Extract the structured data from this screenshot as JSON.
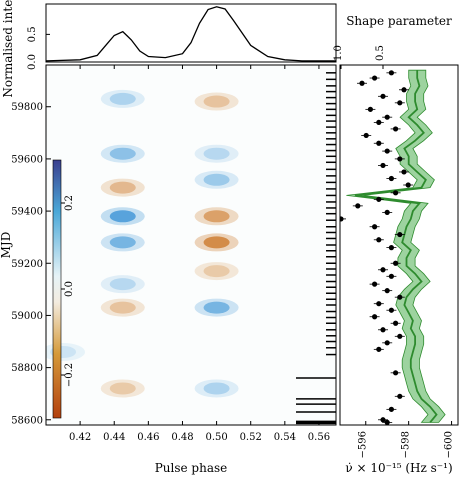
{
  "chart_data": [
    {
      "type": "line",
      "panel": "top profile",
      "ylabel": "Normalised intensity",
      "yticks": [
        "0.0",
        "0.5"
      ],
      "ylim": [
        0,
        1.05
      ],
      "xlim": [
        0.4,
        0.57
      ],
      "x": [
        0.4,
        0.42,
        0.43,
        0.435,
        0.44,
        0.445,
        0.45,
        0.455,
        0.46,
        0.47,
        0.48,
        0.485,
        0.49,
        0.495,
        0.5,
        0.505,
        0.51,
        0.52,
        0.53,
        0.54,
        0.55,
        0.56,
        0.57
      ],
      "y": [
        0.02,
        0.04,
        0.12,
        0.3,
        0.48,
        0.55,
        0.4,
        0.2,
        0.1,
        0.08,
        0.15,
        0.35,
        0.7,
        0.95,
        1.0,
        0.96,
        0.75,
        0.3,
        0.1,
        0.04,
        0.02,
        0.02,
        0.02
      ]
    },
    {
      "type": "heatmap",
      "panel": "main residual map",
      "xlabel": "Pulse phase",
      "ylabel": "MJD",
      "xlim": [
        0.4,
        0.57
      ],
      "ylim": [
        58580,
        59960
      ],
      "xticks": [
        "0.42",
        "0.44",
        "0.46",
        "0.48",
        "0.50",
        "0.52",
        "0.54",
        "0.56"
      ],
      "yticks": [
        "58600",
        "58800",
        "59000",
        "59200",
        "59400",
        "59600",
        "59800"
      ],
      "colorbar": {
        "ticks": [
          "0.2",
          "0.0",
          "−0.2"
        ],
        "vmin": -0.3,
        "vmax": 0.3
      },
      "features": [
        {
          "phase": 0.445,
          "mjd": 59830,
          "value": 0.12
        },
        {
          "phase": 0.445,
          "mjd": 59620,
          "value": 0.18
        },
        {
          "phase": 0.445,
          "mjd": 59490,
          "value": -0.15
        },
        {
          "phase": 0.445,
          "mjd": 59380,
          "value": 0.28
        },
        {
          "phase": 0.445,
          "mjd": 59280,
          "value": 0.22
        },
        {
          "phase": 0.445,
          "mjd": 59120,
          "value": 0.1
        },
        {
          "phase": 0.445,
          "mjd": 59030,
          "value": -0.12
        },
        {
          "phase": 0.445,
          "mjd": 58720,
          "value": -0.1
        },
        {
          "phase": 0.5,
          "mjd": 59820,
          "value": -0.12
        },
        {
          "phase": 0.5,
          "mjd": 59620,
          "value": 0.1
        },
        {
          "phase": 0.5,
          "mjd": 59520,
          "value": 0.15
        },
        {
          "phase": 0.5,
          "mjd": 59380,
          "value": -0.22
        },
        {
          "phase": 0.5,
          "mjd": 59280,
          "value": -0.28
        },
        {
          "phase": 0.5,
          "mjd": 59170,
          "value": -0.1
        },
        {
          "phase": 0.5,
          "mjd": 59030,
          "value": 0.22
        },
        {
          "phase": 0.5,
          "mjd": 58720,
          "value": 0.12
        },
        {
          "phase": 0.41,
          "mjd": 58860,
          "value": 0.06
        }
      ],
      "observation_mjds": [
        59930,
        59905,
        59880,
        59858,
        59835,
        59812,
        59790,
        59767,
        59745,
        59722,
        59700,
        59677,
        59655,
        59632,
        59610,
        59587,
        59560,
        59535,
        59510,
        59485,
        59460,
        59435,
        59412,
        59390,
        59365,
        59340,
        59318,
        59295,
        59270,
        59248,
        59225,
        59200,
        59178,
        59155,
        59130,
        59108,
        59085,
        59062,
        59040,
        59015,
        58992,
        58970,
        58945,
        58922,
        58900,
        58876,
        58850,
        58760,
        58680,
        58660,
        58630,
        58594,
        58590,
        58586
      ]
    },
    {
      "type": "line",
      "panel": "right spin-down panel",
      "xlabel": "ν̇ × 10⁻¹⁵ (Hz s⁻¹)",
      "xlabel_top": "Shape parameter",
      "xticks": [
        "−596",
        "−598",
        "−600"
      ],
      "xticks_top": [
        "1.0",
        "0.5"
      ],
      "xlim": [
        -594.8,
        -600.3
      ],
      "mjd": [
        58590,
        58620,
        58650,
        58680,
        58710,
        58740,
        58770,
        58800,
        58830,
        58860,
        58890,
        58920,
        58950,
        58980,
        59010,
        59040,
        59070,
        59100,
        59130,
        59160,
        59190,
        59220,
        59250,
        59280,
        59310,
        59340,
        59370,
        59400,
        59430,
        59460,
        59490,
        59520,
        59550,
        59580,
        59610,
        59640,
        59670,
        59700,
        59730,
        59760,
        59790,
        59820,
        59850,
        59880,
        59910,
        59940
      ],
      "nudot": [
        -599.0,
        -599.3,
        -599.0,
        -598.6,
        -598.4,
        -598.3,
        -598.2,
        -598.1,
        -598.1,
        -598.2,
        -598.3,
        -598.3,
        -598.1,
        -598.2,
        -598.0,
        -597.8,
        -597.9,
        -598.2,
        -598.6,
        -598.3,
        -597.9,
        -597.9,
        -598.1,
        -597.7,
        -597.8,
        -597.9,
        -598.1,
        -598.2,
        -598.5,
        -595.5,
        -598.6,
        -598.8,
        -598.4,
        -598.0,
        -598.0,
        -597.8,
        -598.3,
        -598.7,
        -598.4,
        -598.0,
        -598.4,
        -598.3,
        -598.3,
        -598.5,
        -598.4,
        -598.4
      ],
      "nudot_err": 0.4,
      "shape_points": [
        {
          "mjd": 59930,
          "shape": 0.4
        },
        {
          "mjd": 59910,
          "shape": 0.6
        },
        {
          "mjd": 59890,
          "shape": 0.75
        },
        {
          "mjd": 59865,
          "shape": 0.25
        },
        {
          "mjd": 59840,
          "shape": 0.5
        },
        {
          "mjd": 59815,
          "shape": 0.3
        },
        {
          "mjd": 59790,
          "shape": 0.65
        },
        {
          "mjd": 59760,
          "shape": 0.45
        },
        {
          "mjd": 59740,
          "shape": 0.55
        },
        {
          "mjd": 59715,
          "shape": 0.35
        },
        {
          "mjd": 59690,
          "shape": 0.7
        },
        {
          "mjd": 59660,
          "shape": 0.55
        },
        {
          "mjd": 59630,
          "shape": 0.45
        },
        {
          "mjd": 59600,
          "shape": 0.3
        },
        {
          "mjd": 59575,
          "shape": 0.5
        },
        {
          "mjd": 59550,
          "shape": 0.25
        },
        {
          "mjd": 59525,
          "shape": 0.4
        },
        {
          "mjd": 59500,
          "shape": 0.2
        },
        {
          "mjd": 59470,
          "shape": 0.35
        },
        {
          "mjd": 59445,
          "shape": 0.55
        },
        {
          "mjd": 59420,
          "shape": 0.8
        },
        {
          "mjd": 59395,
          "shape": 0.45
        },
        {
          "mjd": 59370,
          "shape": 1.0
        },
        {
          "mjd": 59340,
          "shape": 0.6
        },
        {
          "mjd": 59310,
          "shape": 0.3
        },
        {
          "mjd": 59290,
          "shape": 0.55
        },
        {
          "mjd": 59260,
          "shape": 0.4
        },
        {
          "mjd": 59230,
          "shape": 1.15
        },
        {
          "mjd": 59200,
          "shape": 0.35
        },
        {
          "mjd": 59175,
          "shape": 0.5
        },
        {
          "mjd": 59150,
          "shape": 0.4
        },
        {
          "mjd": 59120,
          "shape": 0.6
        },
        {
          "mjd": 59095,
          "shape": 0.45
        },
        {
          "mjd": 59070,
          "shape": 0.3
        },
        {
          "mjd": 59045,
          "shape": 0.55
        },
        {
          "mjd": 59020,
          "shape": 0.4
        },
        {
          "mjd": 58995,
          "shape": 0.6
        },
        {
          "mjd": 58970,
          "shape": 0.35
        },
        {
          "mjd": 58945,
          "shape": 0.5
        },
        {
          "mjd": 58920,
          "shape": 0.3
        },
        {
          "mjd": 58895,
          "shape": 0.45
        },
        {
          "mjd": 58870,
          "shape": 0.55
        },
        {
          "mjd": 58780,
          "shape": 0.35
        },
        {
          "mjd": 58690,
          "shape": 0.3
        },
        {
          "mjd": 58640,
          "shape": 0.4
        },
        {
          "mjd": 58600,
          "shape": 0.5
        },
        {
          "mjd": 58590,
          "shape": 0.45
        }
      ],
      "colors": {
        "line": "#2e8b2e",
        "band": "#4caf50",
        "points": "#000000"
      }
    }
  ]
}
